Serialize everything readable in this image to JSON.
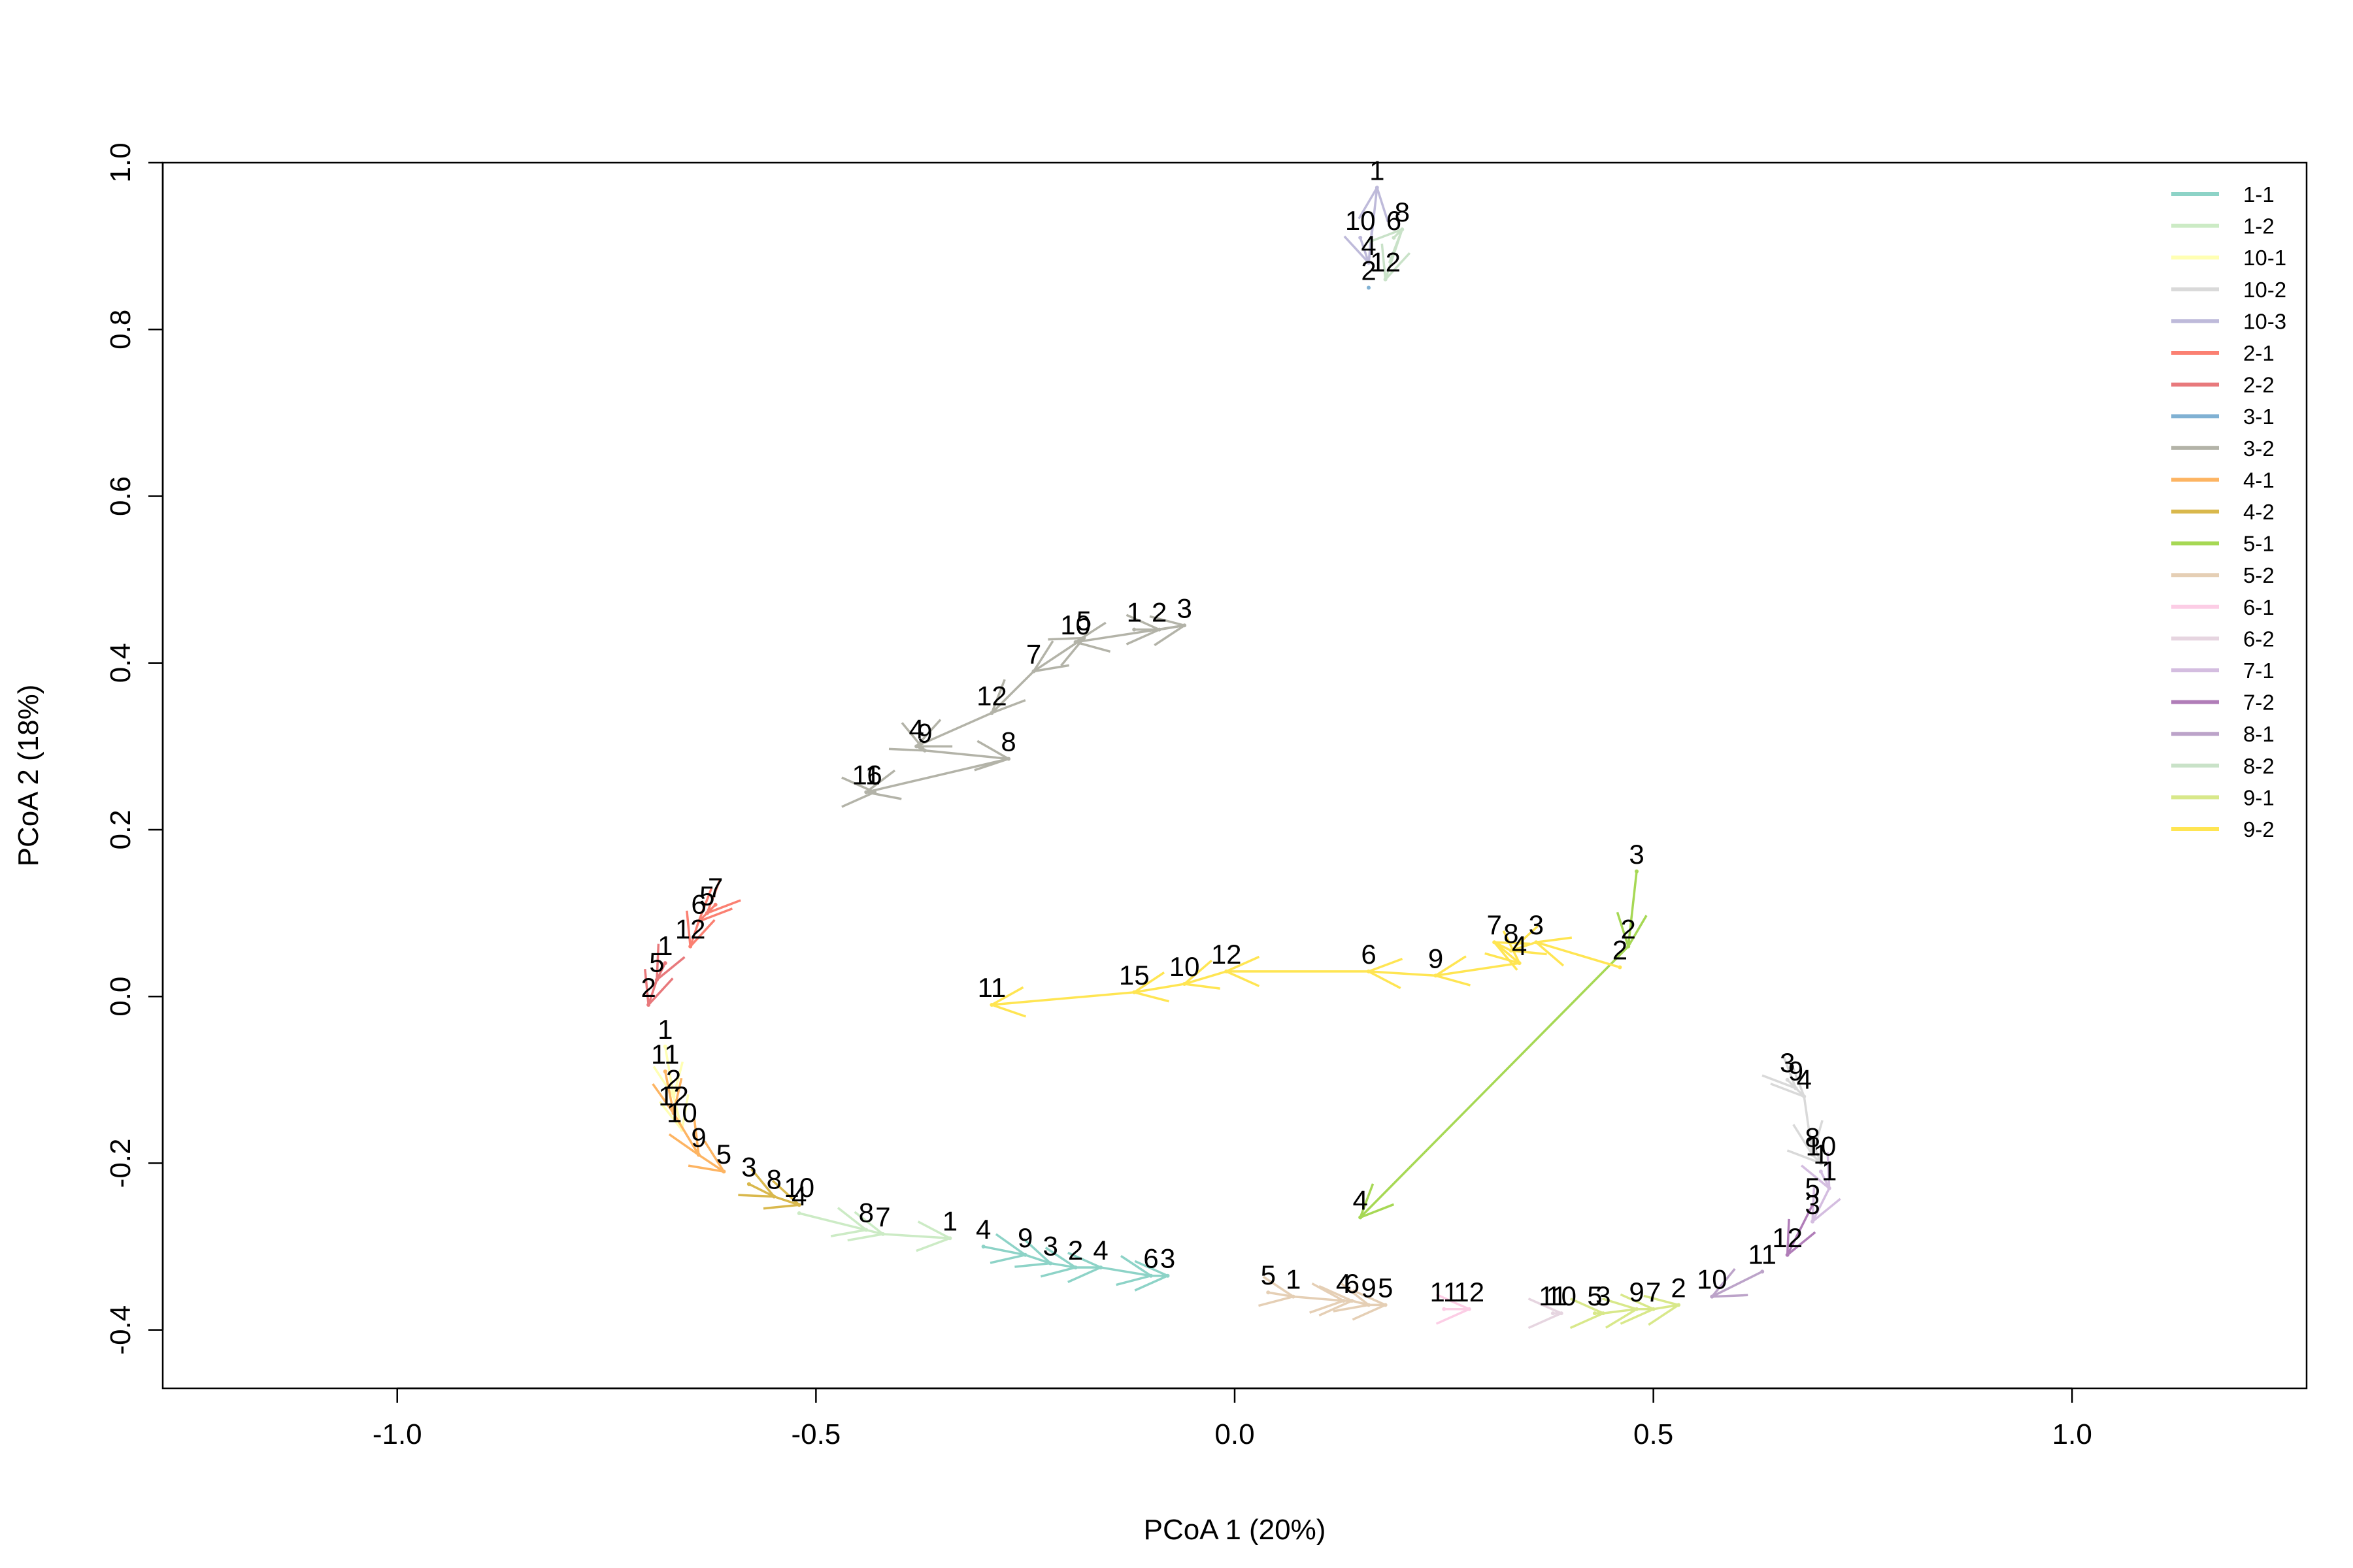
{
  "chart_data": {
    "type": "line",
    "title": "",
    "xlabel": "PCoA 1 (20%)",
    "ylabel": "PCoA 2 (18%)",
    "xlim": [
      -1.28,
      1.28
    ],
    "ylim": [
      -0.47,
      1.0
    ],
    "x_ticks": [
      -1.0,
      -0.5,
      0.0,
      0.5,
      1.0
    ],
    "x_tick_labels": [
      "-1.0",
      "-0.5",
      "0.0",
      "0.5",
      "1.0"
    ],
    "y_ticks": [
      -0.4,
      -0.2,
      0.0,
      0.2,
      0.4,
      0.6,
      0.8,
      1.0
    ],
    "y_tick_labels": [
      "-0.4",
      "-0.2",
      "0.0",
      "0.2",
      "0.4",
      "0.6",
      "0.8",
      "1.0"
    ],
    "grid": false,
    "legend_position": "top-right",
    "series": [
      {
        "name": "1-1",
        "color": "#8dd3c7",
        "points": [
          {
            "label": "4",
            "x": -0.3,
            "y": -0.3
          },
          {
            "label": "9",
            "x": -0.25,
            "y": -0.31
          },
          {
            "label": "3",
            "x": -0.22,
            "y": -0.32
          },
          {
            "label": "2",
            "x": -0.19,
            "y": -0.325
          },
          {
            "label": "4",
            "x": -0.16,
            "y": -0.325
          },
          {
            "label": "6",
            "x": -0.1,
            "y": -0.335
          },
          {
            "label": "3",
            "x": -0.08,
            "y": -0.335
          }
        ]
      },
      {
        "name": "1-2",
        "color": "#ccebc5",
        "points": [
          {
            "label": "4",
            "x": -0.52,
            "y": -0.26
          },
          {
            "label": "8",
            "x": -0.44,
            "y": -0.28
          },
          {
            "label": "7",
            "x": -0.42,
            "y": -0.285
          },
          {
            "label": "1",
            "x": -0.34,
            "y": -0.29
          }
        ]
      },
      {
        "name": "10-1",
        "color": "#ffffb3",
        "points": [
          {
            "label": "1",
            "x": -0.68,
            "y": -0.06
          },
          {
            "label": "2",
            "x": -0.67,
            "y": -0.12
          },
          {
            "label": "10",
            "x": -0.66,
            "y": -0.16
          }
        ]
      },
      {
        "name": "10-2",
        "color": "#d9d9d9",
        "points": [
          {
            "label": "3",
            "x": 0.66,
            "y": -0.1
          },
          {
            "label": "9",
            "x": 0.67,
            "y": -0.11
          },
          {
            "label": "4",
            "x": 0.68,
            "y": -0.12
          },
          {
            "label": "8",
            "x": 0.69,
            "y": -0.19
          },
          {
            "label": "10",
            "x": 0.7,
            "y": -0.2
          }
        ]
      },
      {
        "name": "10-3",
        "color": "#bebada",
        "points": [
          {
            "label": "10",
            "x": 0.15,
            "y": 0.91
          },
          {
            "label": "4",
            "x": 0.16,
            "y": 0.88
          },
          {
            "label": "1",
            "x": 0.17,
            "y": 0.97
          }
        ]
      },
      {
        "name": "2-1",
        "color": "#fb8072",
        "points": [
          {
            "label": "7",
            "x": -0.62,
            "y": 0.11
          },
          {
            "label": "5",
            "x": -0.63,
            "y": 0.1
          },
          {
            "label": "6",
            "x": -0.64,
            "y": 0.09
          },
          {
            "label": "12",
            "x": -0.65,
            "y": 0.06
          }
        ]
      },
      {
        "name": "2-2",
        "color": "#e8797c",
        "points": [
          {
            "label": "1",
            "x": -0.68,
            "y": 0.04
          },
          {
            "label": "5",
            "x": -0.69,
            "y": 0.02
          },
          {
            "label": "2",
            "x": -0.7,
            "y": -0.01
          }
        ]
      },
      {
        "name": "3-1",
        "color": "#80b1d3",
        "points": [
          {
            "label": "2",
            "x": 0.16,
            "y": 0.85
          }
        ]
      },
      {
        "name": "3-2",
        "color": "#b3b3a8",
        "points": [
          {
            "label": "1",
            "x": -0.12,
            "y": 0.44
          },
          {
            "label": "2",
            "x": -0.09,
            "y": 0.44
          },
          {
            "label": "3",
            "x": -0.06,
            "y": 0.445
          },
          {
            "label": "10",
            "x": -0.19,
            "y": 0.425
          },
          {
            "label": "5",
            "x": -0.18,
            "y": 0.43
          },
          {
            "label": "7",
            "x": -0.24,
            "y": 0.39
          },
          {
            "label": "12",
            "x": -0.29,
            "y": 0.34
          },
          {
            "label": "4",
            "x": -0.38,
            "y": 0.3
          },
          {
            "label": "9",
            "x": -0.37,
            "y": 0.295
          },
          {
            "label": "8",
            "x": -0.27,
            "y": 0.285
          },
          {
            "label": "11",
            "x": -0.44,
            "y": 0.245
          },
          {
            "label": "6",
            "x": -0.43,
            "y": 0.245
          }
        ]
      },
      {
        "name": "4-1",
        "color": "#fdb462",
        "points": [
          {
            "label": "11",
            "x": -0.68,
            "y": -0.09
          },
          {
            "label": "12",
            "x": -0.67,
            "y": -0.14
          },
          {
            "label": "9",
            "x": -0.64,
            "y": -0.19
          },
          {
            "label": "5",
            "x": -0.61,
            "y": -0.21
          }
        ]
      },
      {
        "name": "4-2",
        "color": "#d9b84c",
        "points": [
          {
            "label": "3",
            "x": -0.58,
            "y": -0.225
          },
          {
            "label": "8",
            "x": -0.55,
            "y": -0.24
          },
          {
            "label": "10",
            "x": -0.52,
            "y": -0.25
          }
        ]
      },
      {
        "name": "5-1",
        "color": "#a6d854",
        "points": [
          {
            "label": "3",
            "x": 0.48,
            "y": 0.15
          },
          {
            "label": "2",
            "x": 0.47,
            "y": 0.06
          },
          {
            "label": "4",
            "x": 0.15,
            "y": -0.265
          }
        ]
      },
      {
        "name": "5-2",
        "color": "#e5cfb5",
        "points": [
          {
            "label": "5",
            "x": 0.04,
            "y": -0.355
          },
          {
            "label": "1",
            "x": 0.07,
            "y": -0.36
          },
          {
            "label": "4",
            "x": 0.13,
            "y": -0.365
          },
          {
            "label": "6",
            "x": 0.14,
            "y": -0.365
          },
          {
            "label": "9",
            "x": 0.16,
            "y": -0.37
          },
          {
            "label": "5",
            "x": 0.18,
            "y": -0.37
          }
        ]
      },
      {
        "name": "6-1",
        "color": "#fccde5",
        "points": [
          {
            "label": "11",
            "x": 0.25,
            "y": -0.375
          },
          {
            "label": "12",
            "x": 0.28,
            "y": -0.375
          }
        ]
      },
      {
        "name": "6-2",
        "color": "#e6d5e0",
        "points": [
          {
            "label": "11",
            "x": 0.38,
            "y": -0.38
          },
          {
            "label": "10",
            "x": 0.39,
            "y": -0.38
          }
        ]
      },
      {
        "name": "7-1",
        "color": "#d4bde0",
        "points": [
          {
            "label": "1",
            "x": 0.7,
            "y": -0.21
          },
          {
            "label": "1",
            "x": 0.71,
            "y": -0.23
          },
          {
            "label": "3",
            "x": 0.69,
            "y": -0.27
          }
        ]
      },
      {
        "name": "7-2",
        "color": "#b07db8",
        "points": [
          {
            "label": "5",
            "x": 0.69,
            "y": -0.25
          },
          {
            "label": "12",
            "x": 0.66,
            "y": -0.31
          }
        ]
      },
      {
        "name": "8-1",
        "color": "#bca3c9",
        "points": [
          {
            "label": "11",
            "x": 0.63,
            "y": -0.33
          },
          {
            "label": "10",
            "x": 0.57,
            "y": -0.36
          }
        ]
      },
      {
        "name": "8-2",
        "color": "#c9e2c8",
        "points": [
          {
            "label": "6",
            "x": 0.19,
            "y": 0.91
          },
          {
            "label": "8",
            "x": 0.2,
            "y": 0.92
          },
          {
            "label": "12",
            "x": 0.18,
            "y": 0.86
          }
        ]
      },
      {
        "name": "9-1",
        "color": "#d8e88a",
        "points": [
          {
            "label": "5",
            "x": 0.43,
            "y": -0.38
          },
          {
            "label": "3",
            "x": 0.44,
            "y": -0.38
          },
          {
            "label": "9",
            "x": 0.48,
            "y": -0.375
          },
          {
            "label": "7",
            "x": 0.5,
            "y": -0.375
          },
          {
            "label": "2",
            "x": 0.53,
            "y": -0.37
          }
        ]
      },
      {
        "name": "9-2",
        "color": "#ffe552",
        "points": [
          {
            "label": "2",
            "x": 0.46,
            "y": 0.035
          },
          {
            "label": "3",
            "x": 0.36,
            "y": 0.065
          },
          {
            "label": "8",
            "x": 0.33,
            "y": 0.055
          },
          {
            "label": "7",
            "x": 0.31,
            "y": 0.065
          },
          {
            "label": "4",
            "x": 0.34,
            "y": 0.04
          },
          {
            "label": "9",
            "x": 0.24,
            "y": 0.025
          },
          {
            "label": "6",
            "x": 0.16,
            "y": 0.03
          },
          {
            "label": "12",
            "x": -0.01,
            "y": 0.03
          },
          {
            "label": "10",
            "x": -0.06,
            "y": 0.015
          },
          {
            "label": "15",
            "x": -0.12,
            "y": 0.005
          },
          {
            "label": "11",
            "x": -0.29,
            "y": -0.01
          }
        ]
      }
    ]
  }
}
